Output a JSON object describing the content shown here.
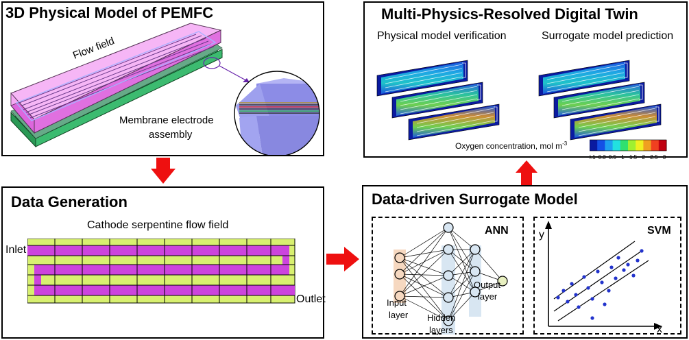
{
  "panels": {
    "physical_model": {
      "title": "3D Physical Model of PEMFC",
      "flow_field_label": "Flow field",
      "mea_label_line1": "Membrane electrode",
      "mea_label_line2": "assembly"
    },
    "data_generation": {
      "title": "Data Generation",
      "subtitle": "Cathode serpentine flow field",
      "inlet_label": "Inlet",
      "outlet_label": "Outlet"
    },
    "digital_twin": {
      "title": "Multi-Physics-Resolved Digital Twin",
      "left_caption": "Physical model verification",
      "right_caption": "Surrogate model prediction",
      "colorbar_title": "Oxygen concentration, mol m",
      "colorbar_exponent": "-3",
      "colorbar_ticks": [
        "0.1",
        "0.3",
        "0.5",
        "1",
        "1.5",
        "2",
        "2.5",
        "3"
      ],
      "colorbar_colors": [
        "#0a1aa0",
        "#1450e6",
        "#1ea0f0",
        "#22e0e0",
        "#30e070",
        "#a0f030",
        "#f0f020",
        "#f0a020",
        "#f04020",
        "#c00010"
      ]
    },
    "surrogate": {
      "title": "Data-driven Surrogate Model",
      "ann_label": "ANN",
      "svm_label": "SVM",
      "input_layer_line1": "Input",
      "input_layer_line2": "layer",
      "hidden_layers_line1": "Hidden",
      "hidden_layers_line2": "layers",
      "output_layer_line1": "Output",
      "output_layer_line2": "layer",
      "axis_y": "y",
      "axis_x": "x"
    }
  },
  "colors": {
    "flow_channel": "#cc44dd",
    "rib": "#d8f070",
    "arrow": "#ee1010",
    "model_pink": "#ee88ee",
    "model_green": "#33aa66"
  }
}
